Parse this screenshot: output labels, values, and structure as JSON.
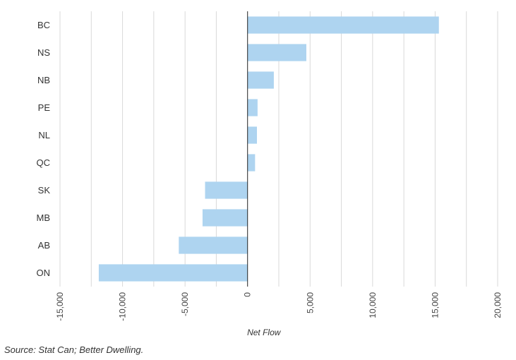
{
  "chart_data": {
    "type": "bar",
    "orientation": "horizontal",
    "categories": [
      "BC",
      "NS",
      "NB",
      "PE",
      "NL",
      "QC",
      "SK",
      "MB",
      "AB",
      "ON"
    ],
    "series": [
      {
        "values": [
          15300,
          4700,
          2100,
          800,
          750,
          600,
          -3400,
          -3600,
          -5500,
          -11900
        ]
      }
    ],
    "xlabel": "Net Flow",
    "xlim": [
      -15000,
      20000
    ],
    "xticks": [
      -15000,
      -10000,
      -5000,
      0,
      5000,
      10000,
      15000,
      20000
    ],
    "xtick_labels": [
      "-15,000",
      "-10,000",
      "-5,000",
      "0",
      "5,000",
      "10,000",
      "15,000",
      "20,000"
    ],
    "grid": "vertical",
    "bar_color": "#aed4f0",
    "zero_line_color": "#222222",
    "grid_color": "#d9d9d9"
  },
  "footer": {
    "source": "Source: Stat Can; Better Dwelling."
  }
}
